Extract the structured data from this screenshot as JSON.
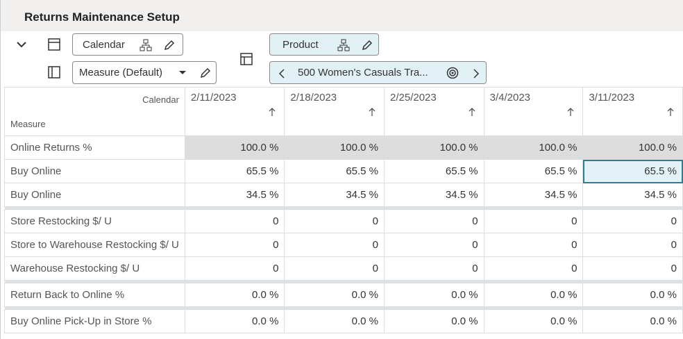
{
  "header": {
    "title": "Returns Maintenance Setup"
  },
  "toolbar": {
    "calendar": "Calendar",
    "measure": "Measure (Default)",
    "product": "Product",
    "product_member": "500 Women's Casuals Tra..."
  },
  "table": {
    "corner_top": "Calendar",
    "corner_left": "Measure",
    "columns": [
      "2/11/2023",
      "2/18/2023",
      "2/25/2023",
      "3/4/2023",
      "3/11/2023"
    ],
    "groups": [
      {
        "rows": [
          {
            "label": "Online Returns %",
            "cells": [
              "100.0 %",
              "100.0 %",
              "100.0 %",
              "100.0 %",
              "100.0 %"
            ]
          },
          {
            "label": "Buy Online",
            "cells": [
              "65.5 %",
              "65.5 %",
              "65.5 %",
              "65.5 %",
              "65.5 %"
            ]
          },
          {
            "label": "Buy Online",
            "cells": [
              "34.5 %",
              "34.5 %",
              "34.5 %",
              "34.5 %",
              "34.5 %"
            ]
          }
        ]
      },
      {
        "rows": [
          {
            "label": "Store Restocking $/ U",
            "cells": [
              "0",
              "0",
              "0",
              "0",
              "0"
            ]
          },
          {
            "label": "Store to Warehouse Restocking $/ U",
            "cells": [
              "0",
              "0",
              "0",
              "0",
              "0"
            ]
          },
          {
            "label": "Warehouse Restocking $/ U",
            "cells": [
              "0",
              "0",
              "0",
              "0",
              "0"
            ]
          }
        ]
      },
      {
        "rows": [
          {
            "label": "Return Back to Online %",
            "cells": [
              "0.0 %",
              "0.0 %",
              "0.0 %",
              "0.0 %",
              "0.0 %"
            ]
          }
        ]
      },
      {
        "rows": [
          {
            "label": "Buy Online Pick-Up in Store %",
            "cells": [
              "0.0 %",
              "0.0 %",
              "0.0 %",
              "0.0 %",
              "0.0 %"
            ]
          }
        ]
      }
    ]
  }
}
